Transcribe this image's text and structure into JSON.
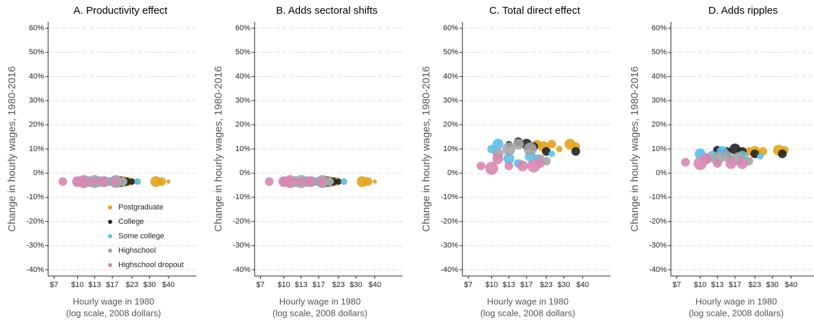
{
  "chart_data": [
    {
      "type": "scatter",
      "title": "A. Productivity effect",
      "ylabel": "Change in hourly wages, 1980-2016",
      "xlabel": [
        "Hourly wage in 1980",
        "(log scale, 2008 dollars)"
      ],
      "xscale": "log",
      "grid": true,
      "legend": "lower center",
      "xlim": [
        6.4,
        61
      ],
      "ylim": [
        -42.6,
        62.6
      ],
      "xticks": [
        {
          "value": 7,
          "label": "$7"
        },
        {
          "value": 10,
          "label": "$10"
        },
        {
          "value": 13,
          "label": "$13"
        },
        {
          "value": 17,
          "label": "$17"
        },
        {
          "value": 23,
          "label": "$23"
        },
        {
          "value": 30,
          "label": "$30"
        },
        {
          "value": 40,
          "label": "$40"
        }
      ],
      "yticks": [
        {
          "value": -40,
          "label": "-40%"
        },
        {
          "value": -30,
          "label": "-30%"
        },
        {
          "value": -20,
          "label": "-20%"
        },
        {
          "value": -10,
          "label": "-10%"
        },
        {
          "value": 0,
          "label": "0%"
        },
        {
          "value": 10,
          "label": "10%"
        },
        {
          "value": 20,
          "label": "20%"
        },
        {
          "value": 30,
          "label": "30%"
        },
        {
          "value": 40,
          "label": "40%"
        },
        {
          "value": 50,
          "label": "50%"
        },
        {
          "value": 60,
          "label": "60%"
        }
      ],
      "series": [
        {
          "name": "Postgraduate",
          "color": "#e3a21a",
          "x": [
            20,
            22,
            25,
            33,
            36,
            40
          ],
          "values": [
            -3.5,
            -3.5,
            -3.5,
            -3.5,
            -3.5,
            -3.5
          ],
          "sizes": [
            4,
            3,
            2,
            4,
            3,
            1
          ]
        },
        {
          "name": "College",
          "color": "#222222",
          "x": [
            17,
            19,
            21,
            23
          ],
          "values": [
            -3.5,
            -3.5,
            -3.5,
            -3.5
          ],
          "sizes": [
            3,
            4,
            3,
            2
          ]
        },
        {
          "name": "Some college",
          "color": "#5bc0eb",
          "x": [
            10,
            12,
            14,
            16,
            18,
            20,
            25
          ],
          "values": [
            -3.5,
            -3.5,
            -3.5,
            -3.5,
            -3.5,
            -3.5,
            -3.5
          ],
          "sizes": [
            3,
            4,
            4,
            3,
            4,
            3,
            2
          ]
        },
        {
          "name": "Highschool",
          "color": "#a6a6a6",
          "x": [
            11,
            13,
            15,
            18,
            20
          ],
          "values": [
            -3.5,
            -3.5,
            -3.5,
            -3.5,
            -3.5
          ],
          "sizes": [
            4,
            5,
            4,
            5,
            3
          ]
        },
        {
          "name": "Highschool dropout",
          "color": "#d987b0",
          "x": [
            8,
            10,
            11,
            13,
            15,
            18
          ],
          "values": [
            -3.5,
            -3.5,
            -3.5,
            -3.5,
            -3.5,
            -3.5
          ],
          "sizes": [
            3,
            4,
            5,
            3,
            4,
            3
          ]
        }
      ]
    },
    {
      "type": "scatter",
      "title": "B. Adds sectoral shifts",
      "ylabel": "Change in hourly wages, 1980-2016",
      "xlabel": [
        "Hourly wage in 1980",
        "(log scale, 2008 dollars)"
      ],
      "xscale": "log",
      "grid": true,
      "xlim": [
        6.4,
        61
      ],
      "ylim": [
        -42.6,
        62.6
      ],
      "xticks": [
        {
          "value": 7,
          "label": "$7"
        },
        {
          "value": 10,
          "label": "$10"
        },
        {
          "value": 13,
          "label": "$13"
        },
        {
          "value": 17,
          "label": "$17"
        },
        {
          "value": 23,
          "label": "$23"
        },
        {
          "value": 30,
          "label": "$30"
        },
        {
          "value": 40,
          "label": "$40"
        }
      ],
      "yticks": [
        {
          "value": -40,
          "label": "-40%"
        },
        {
          "value": -30,
          "label": "-30%"
        },
        {
          "value": -20,
          "label": "-20%"
        },
        {
          "value": -10,
          "label": "-10%"
        },
        {
          "value": 0,
          "label": "0%"
        },
        {
          "value": 10,
          "label": "10%"
        },
        {
          "value": 20,
          "label": "20%"
        },
        {
          "value": 30,
          "label": "30%"
        },
        {
          "value": 40,
          "label": "40%"
        },
        {
          "value": 50,
          "label": "50%"
        },
        {
          "value": 60,
          "label": "60%"
        }
      ],
      "series": [
        {
          "name": "Postgraduate",
          "color": "#e3a21a",
          "x": [
            20,
            22,
            25,
            33,
            36,
            40
          ],
          "values": [
            -3.5,
            -3.5,
            -3.5,
            -3.5,
            -3.5,
            -3.5
          ],
          "sizes": [
            4,
            3,
            2,
            4,
            3,
            1
          ]
        },
        {
          "name": "College",
          "color": "#222222",
          "x": [
            17,
            19,
            21,
            23
          ],
          "values": [
            -3.5,
            -3.5,
            -3.5,
            -3.5
          ],
          "sizes": [
            3,
            4,
            3,
            2
          ]
        },
        {
          "name": "Some college",
          "color": "#5bc0eb",
          "x": [
            10,
            12,
            14,
            16,
            18,
            20,
            25
          ],
          "values": [
            -3.5,
            -3.5,
            -3.5,
            -3.5,
            -3.5,
            -3.5,
            -3.5
          ],
          "sizes": [
            3,
            4,
            4,
            3,
            4,
            3,
            2
          ]
        },
        {
          "name": "Highschool",
          "color": "#a6a6a6",
          "x": [
            11,
            13,
            15,
            18,
            20
          ],
          "values": [
            -3.5,
            -3.5,
            -3.5,
            -3.5,
            -3.5
          ],
          "sizes": [
            4,
            5,
            4,
            5,
            3
          ]
        },
        {
          "name": "Highschool dropout",
          "color": "#d987b0",
          "x": [
            8,
            10,
            11,
            13,
            15,
            18
          ],
          "values": [
            -3.5,
            -3.5,
            -3.5,
            -3.5,
            -3.5,
            -3.5
          ],
          "sizes": [
            3,
            4,
            5,
            3,
            4,
            3
          ]
        }
      ]
    },
    {
      "type": "scatter",
      "title": "C. Total direct effect",
      "ylabel": "Change in hourly wages, 1980-2016",
      "xlabel": [
        "Hourly wage in 1980",
        "(log scale, 2008 dollars)"
      ],
      "xscale": "log",
      "grid": true,
      "xlim": [
        6.4,
        61
      ],
      "ylim": [
        -42.6,
        62.6
      ],
      "xticks": [
        {
          "value": 7,
          "label": "$7"
        },
        {
          "value": 10,
          "label": "$10"
        },
        {
          "value": 13,
          "label": "$13"
        },
        {
          "value": 17,
          "label": "$17"
        },
        {
          "value": 23,
          "label": "$23"
        },
        {
          "value": 30,
          "label": "$30"
        },
        {
          "value": 40,
          "label": "$40"
        }
      ],
      "yticks": [
        {
          "value": -40,
          "label": "-40%"
        },
        {
          "value": -30,
          "label": "-30%"
        },
        {
          "value": -20,
          "label": "-20%"
        },
        {
          "value": -10,
          "label": "-10%"
        },
        {
          "value": 0,
          "label": "0%"
        },
        {
          "value": 10,
          "label": "10%"
        },
        {
          "value": 20,
          "label": "20%"
        },
        {
          "value": 30,
          "label": "30%"
        },
        {
          "value": 40,
          "label": "40%"
        },
        {
          "value": 50,
          "label": "50%"
        },
        {
          "value": 60,
          "label": "60%"
        }
      ],
      "series": [
        {
          "name": "Postgraduate",
          "color": "#e3a21a",
          "x": [
            20,
            22,
            25,
            28,
            33,
            36
          ],
          "values": [
            12,
            11,
            12,
            10,
            12,
            11
          ],
          "sizes": [
            3,
            4,
            3,
            2,
            4,
            3
          ]
        },
        {
          "name": "College",
          "color": "#222222",
          "x": [
            13,
            15,
            17,
            19,
            23,
            36
          ],
          "values": [
            12,
            13,
            12,
            11,
            9,
            9
          ],
          "sizes": [
            2,
            3,
            4,
            3,
            3,
            3
          ]
        },
        {
          "name": "Some college",
          "color": "#5bc0eb",
          "x": [
            10,
            11,
            13,
            15,
            18,
            20,
            25
          ],
          "values": [
            10,
            12,
            6,
            4,
            7,
            6,
            8
          ],
          "sizes": [
            3,
            4,
            4,
            3,
            4,
            3,
            2
          ]
        },
        {
          "name": "Highschool",
          "color": "#a6a6a6",
          "x": [
            11,
            13,
            15,
            18,
            21,
            23
          ],
          "values": [
            8,
            10,
            12,
            10,
            6,
            5
          ],
          "sizes": [
            4,
            5,
            4,
            5,
            3,
            3
          ]
        },
        {
          "name": "Highschool dropout",
          "color": "#d987b0",
          "x": [
            8.5,
            10,
            11,
            13,
            16,
            19,
            21
          ],
          "values": [
            3,
            2,
            6,
            3,
            3,
            3,
            4
          ],
          "sizes": [
            3,
            5,
            4,
            3,
            4,
            5,
            3
          ]
        }
      ]
    },
    {
      "type": "scatter",
      "title": "D. Adds ripples",
      "ylabel": "Change in hourly wages, 1980-2016",
      "xlabel": [
        "Hourly wage in 1980",
        "(log scale, 2008 dollars)"
      ],
      "xscale": "log",
      "grid": true,
      "xlim": [
        6.4,
        61
      ],
      "ylim": [
        -42.6,
        62.6
      ],
      "xticks": [
        {
          "value": 7,
          "label": "$7"
        },
        {
          "value": 10,
          "label": "$10"
        },
        {
          "value": 13,
          "label": "$13"
        },
        {
          "value": 17,
          "label": "$17"
        },
        {
          "value": 23,
          "label": "$23"
        },
        {
          "value": 30,
          "label": "$30"
        },
        {
          "value": 40,
          "label": "$40"
        }
      ],
      "yticks": [
        {
          "value": -40,
          "label": "-40%"
        },
        {
          "value": -30,
          "label": "-30%"
        },
        {
          "value": -20,
          "label": "-20%"
        },
        {
          "value": -10,
          "label": "-10%"
        },
        {
          "value": 0,
          "label": "0%"
        },
        {
          "value": 10,
          "label": "10%"
        },
        {
          "value": 20,
          "label": "20%"
        },
        {
          "value": 30,
          "label": "30%"
        },
        {
          "value": 40,
          "label": "40%"
        },
        {
          "value": 50,
          "label": "50%"
        },
        {
          "value": 60,
          "label": "60%"
        }
      ],
      "series": [
        {
          "name": "Postgraduate",
          "color": "#e3a21a",
          "x": [
            21,
            23,
            26,
            33,
            36
          ],
          "values": [
            9,
            9,
            9,
            9.5,
            9.5
          ],
          "sizes": [
            3,
            4,
            3,
            4,
            3
          ]
        },
        {
          "name": "College",
          "color": "#222222",
          "x": [
            13,
            15,
            17,
            19,
            23,
            35
          ],
          "values": [
            9.5,
            9,
            10,
            9,
            8,
            8
          ],
          "sizes": [
            3,
            3,
            4,
            3,
            3,
            3
          ]
        },
        {
          "name": "Some college",
          "color": "#5bc0eb",
          "x": [
            10,
            12,
            14,
            16,
            19,
            25
          ],
          "values": [
            8,
            7,
            9,
            6,
            7,
            7
          ],
          "sizes": [
            4,
            4,
            4,
            3,
            4,
            2
          ]
        },
        {
          "name": "Highschool",
          "color": "#a6a6a6",
          "x": [
            11,
            13,
            15,
            18,
            21
          ],
          "values": [
            6,
            6,
            7,
            6,
            5
          ],
          "sizes": [
            4,
            5,
            4,
            5,
            3
          ]
        },
        {
          "name": "Highschool dropout",
          "color": "#d987b0",
          "x": [
            8,
            10,
            11,
            13,
            16,
            19
          ],
          "values": [
            4.5,
            4,
            6,
            4,
            4,
            4
          ],
          "sizes": [
            3,
            5,
            4,
            3,
            4,
            4
          ]
        }
      ]
    }
  ]
}
